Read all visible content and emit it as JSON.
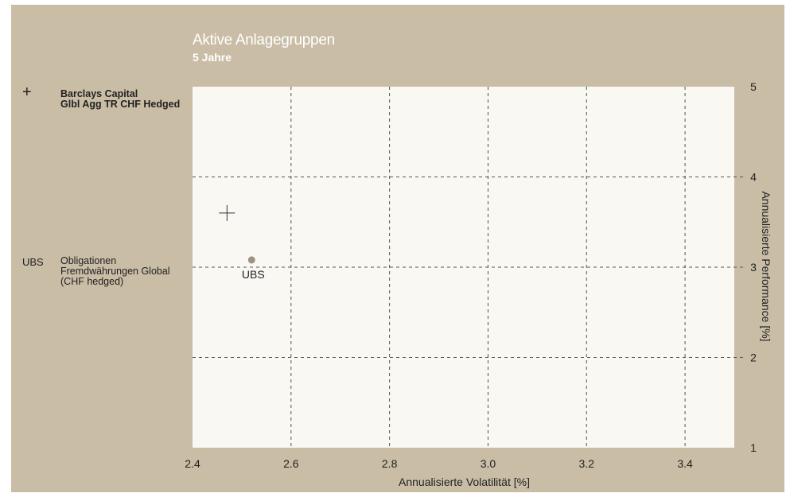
{
  "chart_data": {
    "type": "scatter",
    "title": "Aktive Anlagegruppen",
    "subtitle": "5 Jahre",
    "xlabel": "Annualisierte Volatilität [%]",
    "ylabel": "Annualisierte Performance [%]",
    "xlim": [
      2.4,
      3.5
    ],
    "ylim": [
      1,
      5
    ],
    "xticks": [
      "2.4",
      "2.6",
      "2.8",
      "3.0",
      "3.2",
      "3.4"
    ],
    "yticks": [
      "1",
      "2",
      "3",
      "4",
      "5"
    ],
    "grid": true,
    "series": [
      {
        "marker_text": "+",
        "name_lines": [
          "Barclays Capital",
          "Glbl Agg TR CHF Hedged"
        ],
        "marker": "cross",
        "x": 2.47,
        "y": 3.6,
        "point_label": ""
      },
      {
        "marker_text": "UBS",
        "name_lines": [
          "Obligationen",
          "Fremdwährungen Global",
          "(CHF hedged)"
        ],
        "marker": "dot",
        "x": 2.52,
        "y": 3.08,
        "point_label": "UBS"
      }
    ]
  },
  "colors": {
    "background": "#c9bda6",
    "plot_area": "#faf8f3",
    "grid": "#555555",
    "dot": "#9d9384",
    "title": "#ffffff"
  }
}
